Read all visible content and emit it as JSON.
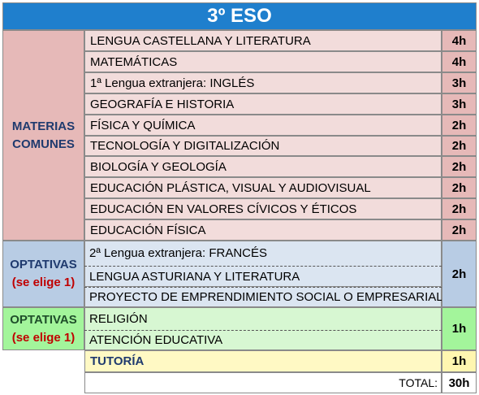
{
  "title": "3º ESO",
  "groups": {
    "comunes": {
      "line1": "MATERIAS",
      "line2": "COMUNES"
    },
    "optativas1": {
      "line1": "OPTATIVAS",
      "line2": "(se elige 1)"
    },
    "optativas2": {
      "line1": "OPTATIVAS",
      "line2": "(se elige 1)"
    }
  },
  "comunes": [
    {
      "name": "LENGUA CASTELLANA Y LITERATURA",
      "hours": "4h"
    },
    {
      "name": "MATEMÁTICAS",
      "hours": "4h"
    },
    {
      "name": "1ª Lengua extranjera: INGLÉS",
      "hours": "3h"
    },
    {
      "name": "GEOGRAFÍA E HISTORIA",
      "hours": "3h"
    },
    {
      "name": "FÍSICA Y QUÍMICA",
      "hours": "2h"
    },
    {
      "name": "TECNOLOGÍA Y DIGITALIZACIÓN",
      "hours": "2h"
    },
    {
      "name": "BIOLOGÍA Y GEOLOGÍA",
      "hours": "2h"
    },
    {
      "name": "EDUCACIÓN PLÁSTICA, VISUAL Y AUDIOVISUAL",
      "hours": "2h"
    },
    {
      "name": "EDUCACIÓN EN VALORES CÍVICOS Y ÉTICOS",
      "hours": "2h"
    },
    {
      "name": "EDUCACIÓN FÍSICA",
      "hours": "2h"
    }
  ],
  "optativas1": {
    "items": [
      "2ª Lengua extranjera: FRANCÉS",
      "LENGUA ASTURIANA Y LITERATURA",
      "PROYECTO DE EMPRENDIMIENTO SOCIAL O EMPRESARIAL"
    ],
    "hours": "2h"
  },
  "optativas2": {
    "items": [
      "RELIGIÓN",
      "ATENCIÓN EDUCATIVA"
    ],
    "hours": "1h"
  },
  "tutoria": {
    "name": "TUTORÍA",
    "hours": "1h"
  },
  "total": {
    "label": "TOTAL:",
    "hours": "30h"
  }
}
